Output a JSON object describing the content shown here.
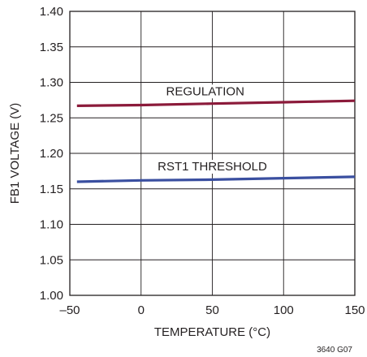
{
  "chart_data": {
    "type": "line",
    "xlabel": "TEMPERATURE (°C)",
    "ylabel": "FB1 VOLTAGE (V)",
    "xlim": [
      -50,
      150
    ],
    "ylim": [
      1.0,
      1.4
    ],
    "x_ticks": [
      -50,
      0,
      50,
      100,
      150
    ],
    "x_tick_labels": [
      "–50",
      "0",
      "50",
      "100",
      "150"
    ],
    "y_ticks": [
      1.0,
      1.05,
      1.1,
      1.15,
      1.2,
      1.25,
      1.3,
      1.35,
      1.4
    ],
    "y_tick_labels": [
      "1.00",
      "1.05",
      "1.10",
      "1.15",
      "1.20",
      "1.25",
      "1.30",
      "1.35",
      "1.40"
    ],
    "grid": true,
    "series": [
      {
        "name": "REGULATION",
        "color": "#8b1a3a",
        "x": [
          -45,
          0,
          50,
          100,
          150
        ],
        "y": [
          1.267,
          1.268,
          1.27,
          1.272,
          1.274
        ]
      },
      {
        "name": "RST1 THRESHOLD",
        "color": "#3a4fa0",
        "x": [
          -45,
          0,
          50,
          100,
          150
        ],
        "y": [
          1.16,
          1.162,
          1.163,
          1.165,
          1.167
        ]
      }
    ],
    "annotations": [
      {
        "text": "REGULATION",
        "x": 45,
        "y": 1.282
      },
      {
        "text": "RST1 THRESHOLD",
        "x": 50,
        "y": 1.176
      }
    ],
    "figure_id": "3640 G07"
  }
}
